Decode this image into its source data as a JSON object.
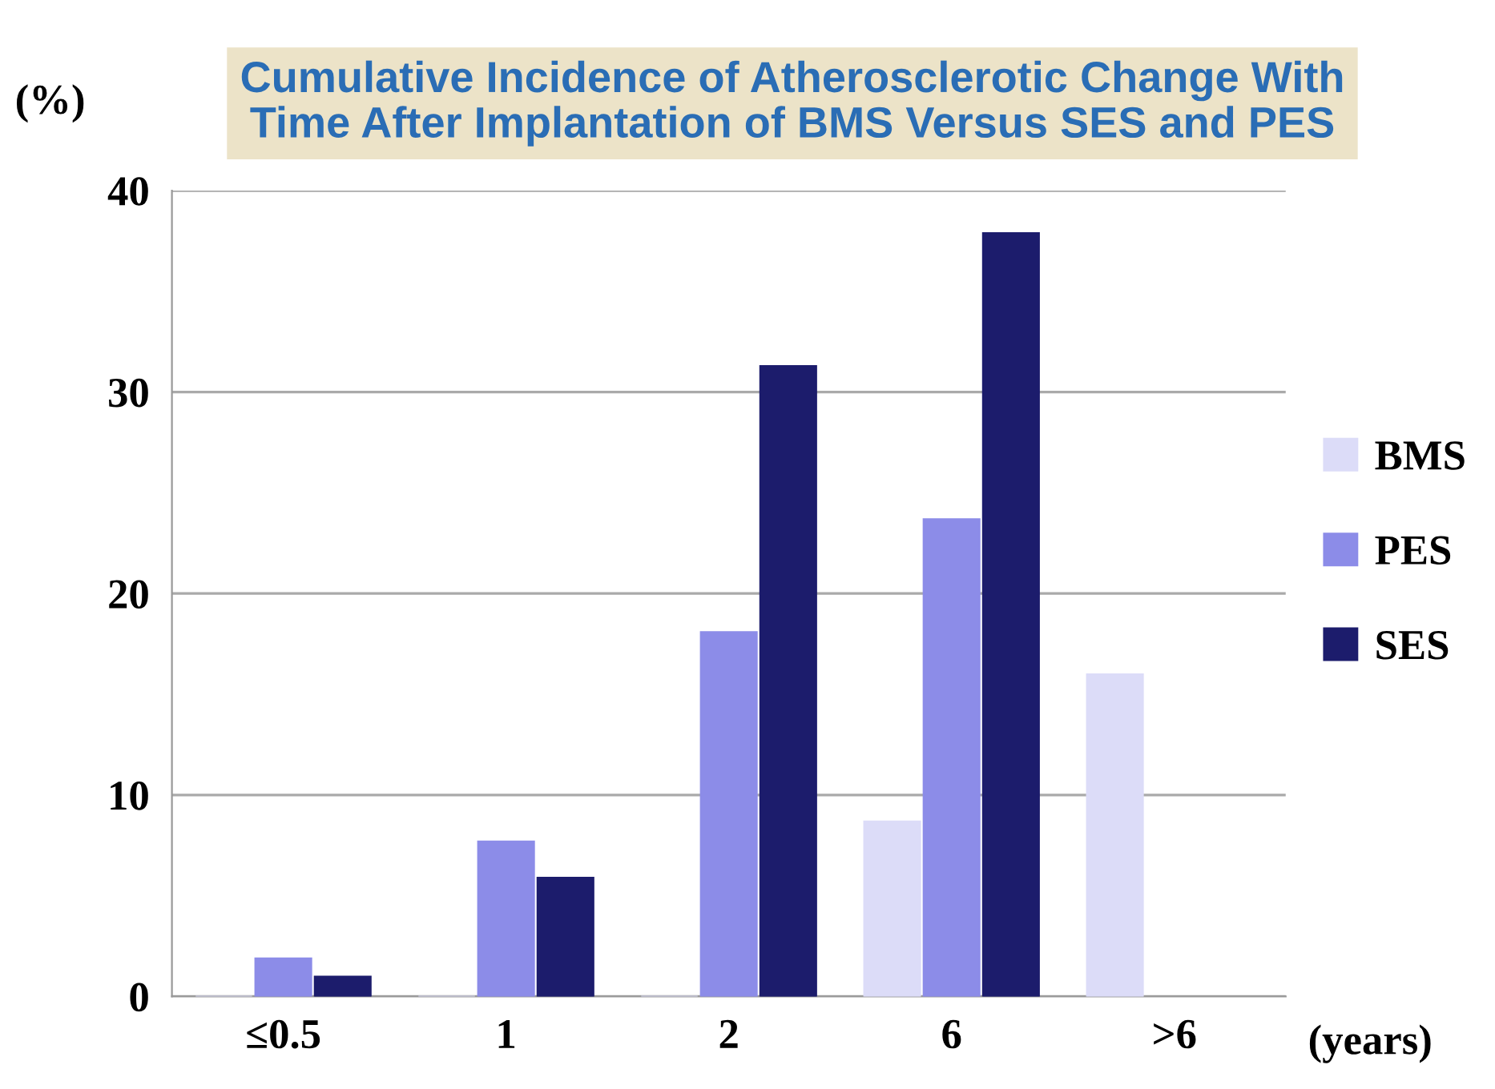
{
  "chart_data": {
    "type": "bar",
    "title": "Cumulative Incidence of Atherosclerotic Change With\nTime After Implantation of BMS Versus SES and PES",
    "ylabel": "(%)",
    "xlabel": "(years)",
    "categories": [
      "≤0.5",
      "1",
      "2",
      "6",
      ">6"
    ],
    "series": [
      {
        "name": "BMS",
        "color": "#dcdcf8",
        "values": [
          0,
          0,
          0,
          8.7,
          16
        ]
      },
      {
        "name": "PES",
        "color": "#8c8ce8",
        "values": [
          1.9,
          7.7,
          18.1,
          23.7,
          null
        ]
      },
      {
        "name": "SES",
        "color": "#1c1c6c",
        "values": [
          1.0,
          5.9,
          31.3,
          37.9,
          null
        ]
      }
    ],
    "ylim": [
      0,
      40
    ],
    "yticks": [
      0,
      10,
      20,
      30,
      40
    ],
    "grid": "y",
    "legend": "right"
  }
}
